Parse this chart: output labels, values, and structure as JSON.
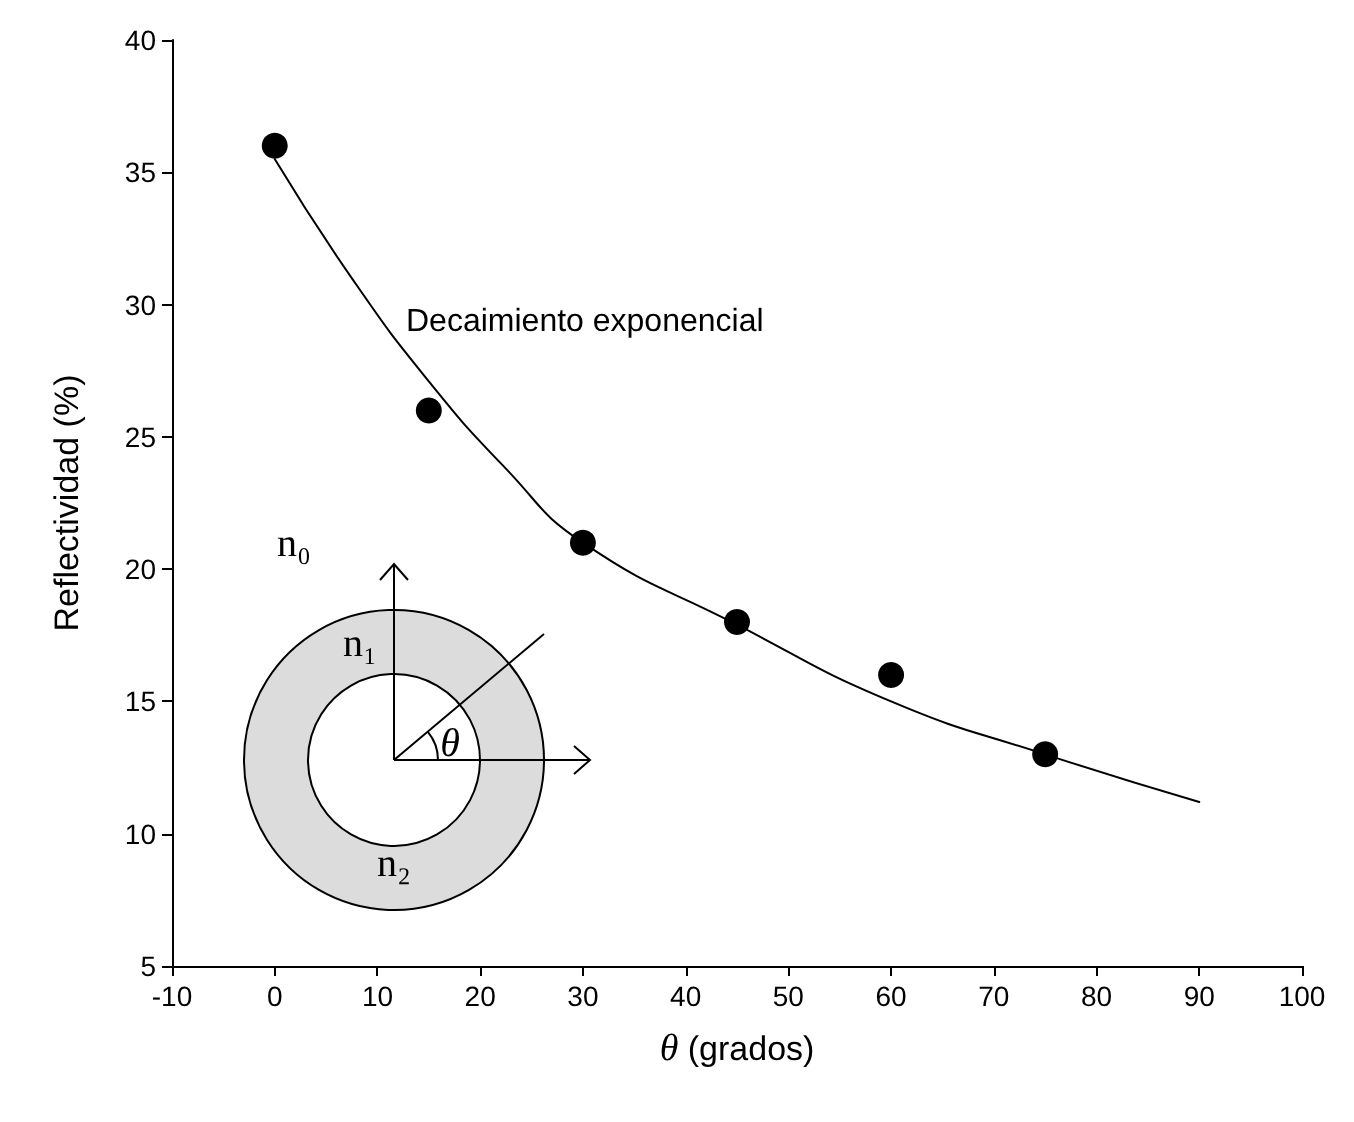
{
  "chart_data": {
    "type": "scatter",
    "xlabel": "θ (grados)",
    "ylabel": "Reflectividad (%)",
    "xlim": [
      -10,
      100
    ],
    "xticks": [
      -10,
      0,
      10,
      20,
      30,
      40,
      50,
      60,
      70,
      80,
      90,
      100
    ],
    "ylim": [
      5,
      40
    ],
    "yticks": [
      5,
      10,
      15,
      20,
      25,
      30,
      35,
      40
    ],
    "grid": false,
    "marker": "circle",
    "series": [
      {
        "color": "#000000",
        "x": [
          0,
          15,
          30,
          45,
          60,
          75
        ],
        "values": [
          36,
          26,
          21,
          18,
          16,
          13
        ]
      },
      {
        "type": "line",
        "color": "#000000",
        "line_style": "solid",
        "marker": "none",
        "x": [
          0,
          7.5,
          15,
          22.5,
          30,
          45,
          60,
          75,
          90
        ],
        "values": [
          35.5,
          31.0,
          27.1,
          23.8,
          21.0,
          17.9,
          15.0,
          13.0,
          11.2
        ]
      }
    ],
    "annotations": [
      "Decaimiento exponencial",
      "n₀",
      "n₁",
      "n₂",
      "θ"
    ]
  }
}
